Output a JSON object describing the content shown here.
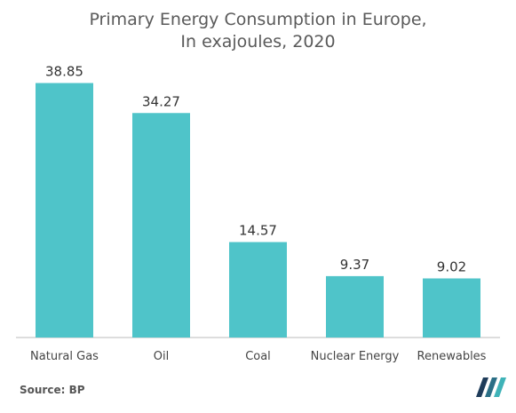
{
  "chart_data": {
    "type": "bar",
    "title_line1": "Primary Energy Consumption in Europe,",
    "title_line2": "In exajoules, 2020",
    "categories": [
      "Natural Gas",
      "Oil",
      "Coal",
      "Nuclear Energy",
      "Renewables"
    ],
    "values": [
      38.85,
      34.27,
      14.57,
      9.37,
      9.02
    ],
    "value_labels": [
      "38.85",
      "34.27",
      "14.57",
      "9.37",
      "9.02"
    ],
    "ylim": [
      0,
      40
    ],
    "grid": false,
    "legend": "none",
    "bar_color": "#4fc4c9"
  },
  "source": "Source: BP",
  "colors": {
    "text": "#555555",
    "axis": "#bbbbbb",
    "logo_dark": "#1f3c5a",
    "logo_teal": "#3fb3b8"
  }
}
